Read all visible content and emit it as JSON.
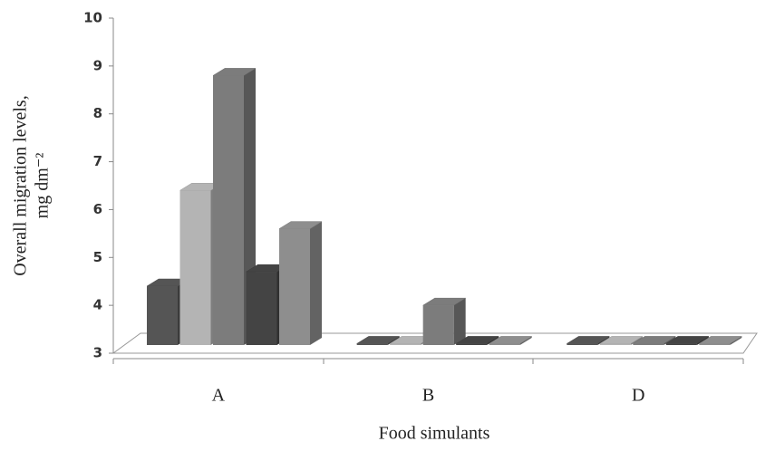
{
  "chart_data": {
    "type": "bar3d",
    "x_label": "Food simulants",
    "y_label": [
      "Overall migration levels,",
      "mg dm⁻²"
    ],
    "categories": [
      "A",
      "B",
      "D"
    ],
    "series": [
      {
        "color": "#555555",
        "values": [
          4.4,
          3.2,
          3.2
        ]
      },
      {
        "color": "#b4b4b4",
        "values": [
          6.4,
          3.2,
          3.2
        ]
      },
      {
        "color": "#7c7c7c",
        "values": [
          8.8,
          4.0,
          3.2
        ]
      },
      {
        "color": "#444444",
        "values": [
          4.7,
          3.2,
          3.2
        ]
      },
      {
        "color": "#8e8e8e",
        "values": [
          5.6,
          3.2,
          3.2
        ]
      }
    ],
    "ylim": [
      3,
      10
    ],
    "yticks": [
      3,
      4,
      5,
      6,
      7,
      8,
      9,
      10
    ],
    "grid": false
  }
}
